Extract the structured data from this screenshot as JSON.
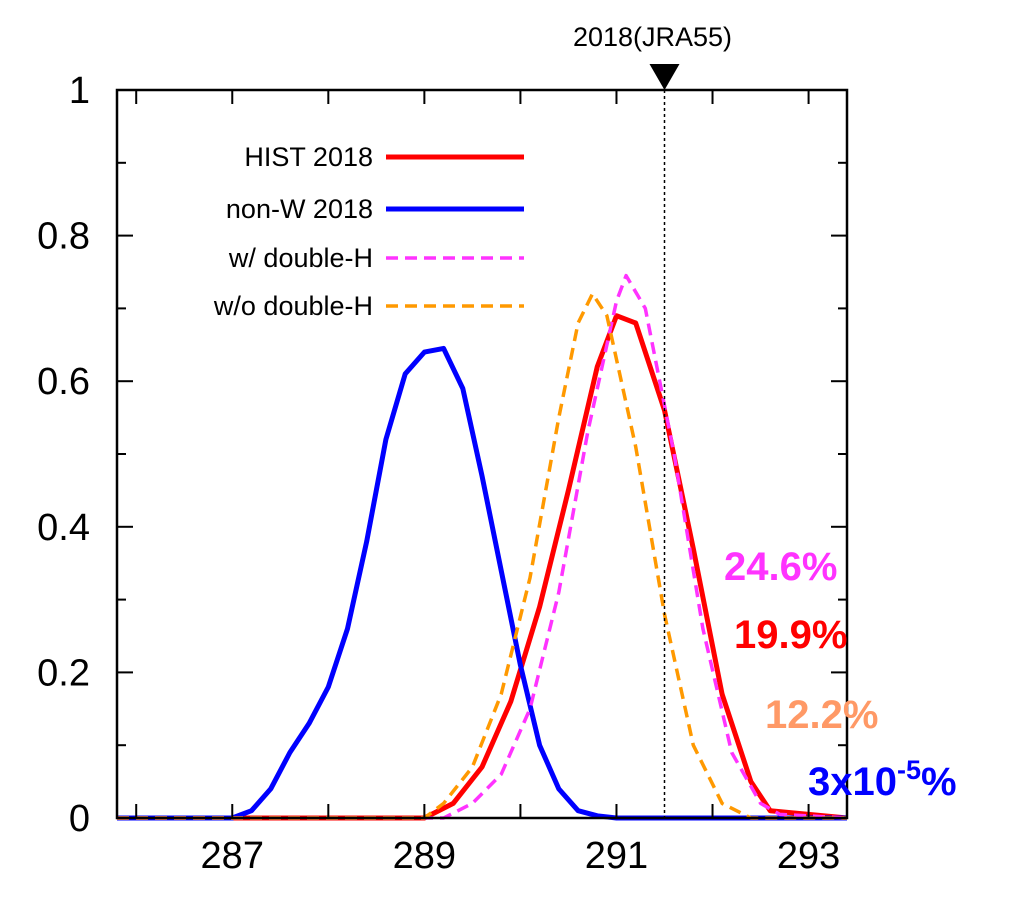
{
  "chart_data": {
    "type": "line",
    "title": "",
    "xlabel": "",
    "ylabel": "",
    "xlim": [
      285.8,
      293.4
    ],
    "ylim": [
      0,
      1
    ],
    "x_ticks": [
      "287",
      "289",
      "291",
      "293"
    ],
    "y_ticks": [
      "0",
      "0.2",
      "0.4",
      "0.6",
      "0.8",
      "1"
    ],
    "grid": false,
    "legend_position": "top-left",
    "series": [
      {
        "name": "HIST 2018",
        "color": "#ff0000",
        "dash": "solid",
        "x": [
          285.8,
          289.0,
          289.3,
          289.6,
          289.9,
          290.2,
          290.5,
          290.8,
          291.0,
          291.2,
          291.5,
          291.8,
          292.1,
          292.4,
          292.6,
          293.4
        ],
        "y": [
          0,
          0,
          0.02,
          0.07,
          0.16,
          0.29,
          0.45,
          0.62,
          0.69,
          0.68,
          0.56,
          0.37,
          0.17,
          0.05,
          0.01,
          0
        ]
      },
      {
        "name": "non-W 2018",
        "color": "#0000ff",
        "dash": "solid",
        "x": [
          285.8,
          287.0,
          287.2,
          287.4,
          287.6,
          287.8,
          288.0,
          288.2,
          288.4,
          288.6,
          288.8,
          289.0,
          289.2,
          289.4,
          289.6,
          289.8,
          290.0,
          290.2,
          290.4,
          290.6,
          290.8,
          291.0,
          293.4
        ],
        "y": [
          0,
          0,
          0.01,
          0.04,
          0.09,
          0.13,
          0.18,
          0.26,
          0.38,
          0.52,
          0.61,
          0.64,
          0.645,
          0.59,
          0.47,
          0.34,
          0.21,
          0.1,
          0.04,
          0.01,
          0.003,
          0,
          0
        ]
      },
      {
        "name": "w/ double-H",
        "color": "#ff33ff",
        "dash": "dashed",
        "x": [
          285.8,
          289.2,
          289.5,
          289.8,
          290.1,
          290.4,
          290.7,
          291.0,
          291.1,
          291.3,
          291.6,
          291.9,
          292.2,
          292.5,
          292.7,
          293.4
        ],
        "y": [
          0,
          0,
          0.02,
          0.06,
          0.15,
          0.31,
          0.53,
          0.71,
          0.745,
          0.7,
          0.5,
          0.26,
          0.09,
          0.02,
          0.005,
          0
        ]
      },
      {
        "name": "w/o double-H",
        "color": "#ff9900",
        "dash": "dashed",
        "x": [
          285.8,
          289.0,
          289.2,
          289.5,
          289.8,
          290.1,
          290.4,
          290.6,
          290.75,
          290.9,
          291.2,
          291.5,
          291.8,
          292.1,
          292.4,
          293.4
        ],
        "y": [
          0,
          0,
          0.02,
          0.07,
          0.17,
          0.33,
          0.55,
          0.68,
          0.72,
          0.69,
          0.51,
          0.28,
          0.1,
          0.02,
          0,
          0
        ]
      }
    ],
    "reference_line": {
      "x": 291.5,
      "label": "2018(JRA55)"
    },
    "annotations": [
      {
        "text": "24.6%",
        "color": "#ff33ff"
      },
      {
        "text": "19.9%",
        "color": "#ff0000"
      },
      {
        "text": "12.2%",
        "color": "#ff9966"
      },
      {
        "text_base": "3x10",
        "text_exp": "-5",
        "text_suffix": "%",
        "color": "#0000ff"
      }
    ]
  }
}
